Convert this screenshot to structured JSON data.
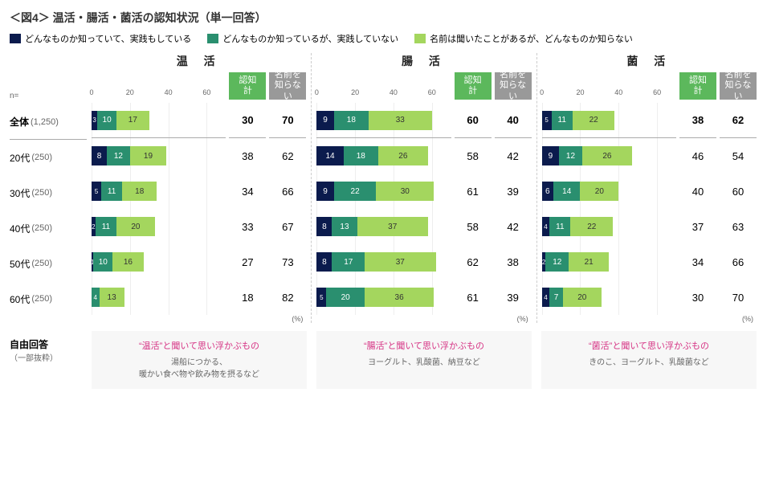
{
  "title": "＜図4＞ 温活・腸活・菌活の認知状況（単一回答）",
  "legend": [
    {
      "color": "#0b1b4d",
      "label": "どんなものか知っていて、実践もしている"
    },
    {
      "color": "#2a8f6f",
      "label": "どんなものか知っているが、実践していない"
    },
    {
      "color": "#a4d65e",
      "label": "名前は聞いたことがあるが、どんなものか知らない"
    }
  ],
  "headers": {
    "ninchi": "認知\n計",
    "shiranai": "名前を\n知らない",
    "ninchi_bg": "#5cb85c",
    "shiranai_bg": "#999999"
  },
  "n_label": "n=",
  "row_labels": [
    {
      "group": "全体",
      "n": "(1,250)",
      "bold": true
    },
    {
      "group": "20代",
      "n": "(250)"
    },
    {
      "group": "30代",
      "n": "(250)"
    },
    {
      "group": "40代",
      "n": "(250)"
    },
    {
      "group": "50代",
      "n": "(250)"
    },
    {
      "group": "60代",
      "n": "(250)"
    }
  ],
  "axis": {
    "max": 70,
    "ticks": [
      0,
      20,
      40,
      60
    ]
  },
  "pct_label": "(%)",
  "panels": [
    {
      "title": "温 活",
      "rows": [
        {
          "segs": [
            3,
            10,
            17
          ],
          "ninchi": 30,
          "shiranai": 70,
          "bold": true
        },
        {
          "segs": [
            8,
            12,
            19
          ],
          "ninchi": 38,
          "shiranai": 62
        },
        {
          "segs": [
            5,
            11,
            18
          ],
          "ninchi": 34,
          "shiranai": 66
        },
        {
          "segs": [
            2,
            11,
            20
          ],
          "ninchi": 33,
          "shiranai": 67
        },
        {
          "segs": [
            1,
            10,
            16
          ],
          "ninchi": 27,
          "shiranai": 73
        },
        {
          "segs": [
            0,
            4,
            13
          ],
          "ninchi": 18,
          "shiranai": 82
        }
      ]
    },
    {
      "title": "腸 活",
      "rows": [
        {
          "segs": [
            9,
            18,
            33
          ],
          "ninchi": 60,
          "shiranai": 40,
          "bold": true
        },
        {
          "segs": [
            14,
            18,
            26
          ],
          "ninchi": 58,
          "shiranai": 42
        },
        {
          "segs": [
            9,
            22,
            30
          ],
          "ninchi": 61,
          "shiranai": 39
        },
        {
          "segs": [
            8,
            13,
            37
          ],
          "ninchi": 58,
          "shiranai": 42
        },
        {
          "segs": [
            8,
            17,
            37
          ],
          "ninchi": 62,
          "shiranai": 38
        },
        {
          "segs": [
            5,
            20,
            36
          ],
          "ninchi": 61,
          "shiranai": 39
        }
      ]
    },
    {
      "title": "菌 活",
      "rows": [
        {
          "segs": [
            5,
            11,
            22
          ],
          "ninchi": 38,
          "shiranai": 62,
          "bold": true
        },
        {
          "segs": [
            9,
            12,
            26
          ],
          "ninchi": 46,
          "shiranai": 54
        },
        {
          "segs": [
            6,
            14,
            20
          ],
          "ninchi": 40,
          "shiranai": 60
        },
        {
          "segs": [
            4,
            11,
            22
          ],
          "ninchi": 37,
          "shiranai": 63
        },
        {
          "segs": [
            2,
            12,
            21
          ],
          "ninchi": 34,
          "shiranai": 66
        },
        {
          "segs": [
            4,
            7,
            20
          ],
          "ninchi": 30,
          "shiranai": 70
        }
      ]
    }
  ],
  "free": {
    "label": "自由回答",
    "sublabel": "（一部抜粋）",
    "boxes": [
      {
        "title": "“温活”と聞いて思い浮かぶもの",
        "body": "湯船につかる、\n暖かい食べ物や飲み物を摂るなど"
      },
      {
        "title": "“腸活”と聞いて思い浮かぶもの",
        "body": "ヨーグルト、乳酸菌、納豆など"
      },
      {
        "title": "“菌活”と聞いて思い浮かぶもの",
        "body": "きのこ、ヨーグルト、乳酸菌など"
      }
    ]
  }
}
